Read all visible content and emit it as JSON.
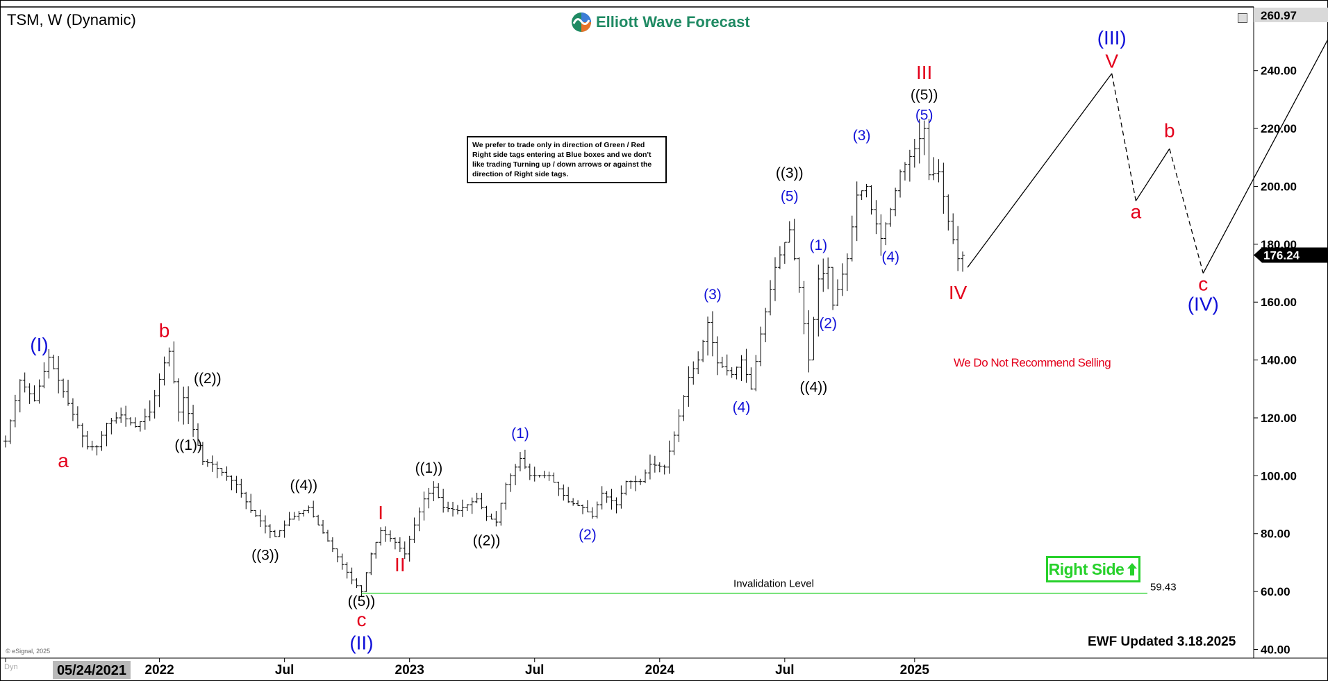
{
  "header": {
    "title": "TSM, W (Dynamic)",
    "brand": "Elliott Wave Forecast"
  },
  "note": "We prefer to trade only in direction of Green / Red Right side tags entering at Blue boxes and we don't like trading Turning up / down arrows or against the direction of Right side tags.",
  "recommendation": "We Do Not Recommend Selling",
  "right_side_label": "Right Side",
  "updated": "EWF Updated 3.18.2025",
  "copyright": "© eSignal, 2025",
  "dyn_label": "Dyn",
  "colors": {
    "accent_green": "#27d12b",
    "brand_green": "#1f8a63",
    "wave_red": "#e3001b",
    "wave_blue": "#1010d8"
  },
  "chart_data": {
    "type": "ohlc",
    "symbol": "TSM",
    "interval": "W",
    "ylim": [
      37,
      262
    ],
    "y_ticks": [
      40,
      60,
      80,
      100,
      120,
      140,
      160,
      180,
      200,
      220,
      240
    ],
    "y_tick_labels": [
      "40.00",
      "60.00",
      "80.00",
      "100.00",
      "120.00",
      "140.00",
      "160.00",
      "180.00",
      "200.00",
      "220.00",
      "240.00"
    ],
    "x_start": "2021-05-24",
    "x_end": "2026-03-30",
    "x_ticks": [
      {
        "date": "2021-05-24",
        "label": "05/24/2021",
        "boxed": true
      },
      {
        "date": "2022-01-03",
        "label": "2022"
      },
      {
        "date": "2022-07-04",
        "label": "Jul"
      },
      {
        "date": "2023-01-02",
        "label": "2023"
      },
      {
        "date": "2023-07-03",
        "label": "Jul"
      },
      {
        "date": "2024-01-01",
        "label": "2024"
      },
      {
        "date": "2024-07-01",
        "label": "Jul"
      },
      {
        "date": "2025-01-06",
        "label": "2025"
      }
    ],
    "price_top_label": "260.97",
    "current_price": 176.24,
    "current_price_label": "176.24",
    "invalidation": {
      "level": 59.43,
      "label": "Invalidation Level",
      "value_label": "59.43",
      "start": "2022-10-24"
    },
    "price_path": [
      [
        "2021-05-24",
        112
      ],
      [
        "2021-06-14",
        133
      ],
      [
        "2021-07-05",
        126
      ],
      [
        "2021-07-26",
        141
      ],
      [
        "2021-08-23",
        125
      ],
      [
        "2021-09-20",
        110
      ],
      [
        "2021-10-04",
        110
      ],
      [
        "2021-10-18",
        118
      ],
      [
        "2021-11-08",
        121
      ],
      [
        "2021-11-29",
        117
      ],
      [
        "2021-12-20",
        122
      ],
      [
        "2022-01-10",
        139
      ],
      [
        "2022-01-17",
        143
      ],
      [
        "2022-01-31",
        122
      ],
      [
        "2022-02-07",
        127
      ],
      [
        "2022-03-07",
        105
      ],
      [
        "2022-03-21",
        104
      ],
      [
        "2022-04-25",
        97
      ],
      [
        "2022-05-16",
        88
      ],
      [
        "2022-06-20",
        79
      ],
      [
        "2022-07-11",
        85
      ],
      [
        "2022-08-08",
        89
      ],
      [
        "2022-08-22",
        83
      ],
      [
        "2022-09-19",
        72
      ],
      [
        "2022-10-10",
        64
      ],
      [
        "2022-10-24",
        60
      ],
      [
        "2022-11-07",
        73
      ],
      [
        "2022-11-21",
        81
      ],
      [
        "2022-12-12",
        77
      ],
      [
        "2022-12-26",
        73
      ],
      [
        "2023-01-09",
        83
      ],
      [
        "2023-01-23",
        92
      ],
      [
        "2023-02-06",
        96
      ],
      [
        "2023-02-20",
        89
      ],
      [
        "2023-03-13",
        88
      ],
      [
        "2023-04-10",
        92
      ],
      [
        "2023-04-24",
        86
      ],
      [
        "2023-05-08",
        84
      ],
      [
        "2023-05-22",
        97
      ],
      [
        "2023-06-12",
        106
      ],
      [
        "2023-06-26",
        100
      ],
      [
        "2023-07-24",
        100
      ],
      [
        "2023-08-21",
        91
      ],
      [
        "2023-09-11",
        89
      ],
      [
        "2023-09-25",
        86
      ],
      [
        "2023-10-09",
        94
      ],
      [
        "2023-10-30",
        90
      ],
      [
        "2023-11-13",
        98
      ],
      [
        "2023-12-04",
        98
      ],
      [
        "2023-12-18",
        104
      ],
      [
        "2024-01-08",
        103
      ],
      [
        "2024-01-22",
        114
      ],
      [
        "2024-02-12",
        134
      ],
      [
        "2024-02-26",
        140
      ],
      [
        "2024-03-11",
        153
      ],
      [
        "2024-03-25",
        139
      ],
      [
        "2024-04-15",
        135
      ],
      [
        "2024-04-29",
        140
      ],
      [
        "2024-05-13",
        130
      ],
      [
        "2024-05-27",
        149
      ],
      [
        "2024-06-17",
        172
      ],
      [
        "2024-07-08",
        185
      ],
      [
        "2024-07-22",
        165
      ],
      [
        "2024-08-05",
        140
      ],
      [
        "2024-08-19",
        168
      ],
      [
        "2024-09-02",
        172
      ],
      [
        "2024-09-09",
        159
      ],
      [
        "2024-09-30",
        175
      ],
      [
        "2024-10-14",
        197
      ],
      [
        "2024-10-28",
        200
      ],
      [
        "2024-11-04",
        192
      ],
      [
        "2024-11-18",
        182
      ],
      [
        "2024-12-02",
        192
      ],
      [
        "2024-12-16",
        205
      ],
      [
        "2025-01-06",
        213
      ],
      [
        "2025-01-20",
        220
      ],
      [
        "2025-01-27",
        204
      ],
      [
        "2025-02-10",
        205
      ],
      [
        "2025-02-24",
        188
      ],
      [
        "2025-03-10",
        175
      ],
      [
        "2025-03-17",
        176.24
      ]
    ],
    "projection": [
      [
        "2025-03-24",
        172
      ],
      [
        "2025-10-20",
        239
      ],
      [
        "2025-11-24",
        195
      ],
      [
        "2026-01-12",
        213
      ],
      [
        "2026-03-02",
        170
      ],
      [
        "2026-08-31",
        251
      ]
    ],
    "projection_dashed_segments": [
      1,
      3
    ],
    "wave_labels": [
      {
        "text": "(I)",
        "date": "2021-07-12",
        "price": 143,
        "color": "blue",
        "size": "lg"
      },
      {
        "text": "a",
        "date": "2021-08-16",
        "price": 103,
        "color": "red",
        "size": "lg"
      },
      {
        "text": "b",
        "date": "2022-01-10",
        "price": 148,
        "color": "red",
        "size": "lg"
      },
      {
        "text": "((1))",
        "date": "2022-02-14",
        "price": 109,
        "color": "black",
        "size": "md"
      },
      {
        "text": "((2))",
        "date": "2022-03-14",
        "price": 132,
        "color": "black",
        "size": "md"
      },
      {
        "text": "((3))",
        "date": "2022-06-06",
        "price": 71,
        "color": "black",
        "size": "md"
      },
      {
        "text": "((4))",
        "date": "2022-08-01",
        "price": 95,
        "color": "black",
        "size": "md"
      },
      {
        "text": "((5))",
        "date": "2022-10-24",
        "price": 55,
        "color": "black",
        "size": "md"
      },
      {
        "text": "c",
        "date": "2022-10-24",
        "price": 48,
        "color": "red",
        "size": "lg"
      },
      {
        "text": "(II)",
        "date": "2022-10-24",
        "price": 40,
        "color": "blue",
        "size": "lg"
      },
      {
        "text": "I",
        "date": "2022-11-21",
        "price": 85,
        "color": "red",
        "size": "lg"
      },
      {
        "text": "II",
        "date": "2022-12-19",
        "price": 67,
        "color": "red",
        "size": "lg"
      },
      {
        "text": "((1))",
        "date": "2023-01-30",
        "price": 101,
        "color": "black",
        "size": "md"
      },
      {
        "text": "((2))",
        "date": "2023-04-24",
        "price": 76,
        "color": "black",
        "size": "md"
      },
      {
        "text": "(1)",
        "date": "2023-06-12",
        "price": 113,
        "color": "blue",
        "size": "md"
      },
      {
        "text": "(2)",
        "date": "2023-09-18",
        "price": 78,
        "color": "blue",
        "size": "md"
      },
      {
        "text": "(3)",
        "date": "2024-03-18",
        "price": 161,
        "color": "blue",
        "size": "md"
      },
      {
        "text": "(4)",
        "date": "2024-04-29",
        "price": 122,
        "color": "blue",
        "size": "md"
      },
      {
        "text": "((3))",
        "date": "2024-07-08",
        "price": 203,
        "color": "black",
        "size": "md"
      },
      {
        "text": "(5)",
        "date": "2024-07-08",
        "price": 195,
        "color": "blue",
        "size": "md"
      },
      {
        "text": "(1)",
        "date": "2024-08-19",
        "price": 178,
        "color": "blue",
        "size": "md"
      },
      {
        "text": "(2)",
        "date": "2024-09-02",
        "price": 151,
        "color": "blue",
        "size": "md"
      },
      {
        "text": "((4))",
        "date": "2024-08-12",
        "price": 129,
        "color": "black",
        "size": "md"
      },
      {
        "text": "(3)",
        "date": "2024-10-21",
        "price": 216,
        "color": "blue",
        "size": "md"
      },
      {
        "text": "(4)",
        "date": "2024-12-02",
        "price": 174,
        "color": "blue",
        "size": "md"
      },
      {
        "text": "III",
        "date": "2025-01-20",
        "price": 237,
        "color": "red",
        "size": "lg"
      },
      {
        "text": "((5))",
        "date": "2025-01-20",
        "price": 230,
        "color": "black",
        "size": "md"
      },
      {
        "text": "(5)",
        "date": "2025-01-20",
        "price": 223,
        "color": "blue",
        "size": "md"
      },
      {
        "text": "IV",
        "date": "2025-03-10",
        "price": 161,
        "color": "red",
        "size": "lg"
      },
      {
        "text": "(III)",
        "date": "2025-10-20",
        "price": 249,
        "color": "blue",
        "size": "lg"
      },
      {
        "text": "V",
        "date": "2025-10-20",
        "price": 241,
        "color": "red",
        "size": "lg"
      },
      {
        "text": "a",
        "date": "2025-11-24",
        "price": 189,
        "color": "red",
        "size": "lg"
      },
      {
        "text": "b",
        "date": "2026-01-12",
        "price": 217,
        "color": "red",
        "size": "lg"
      },
      {
        "text": "c",
        "date": "2026-03-02",
        "price": 164,
        "color": "red",
        "size": "lg"
      },
      {
        "text": "(IV)",
        "date": "2026-03-02",
        "price": 157,
        "color": "blue",
        "size": "lg"
      }
    ]
  }
}
